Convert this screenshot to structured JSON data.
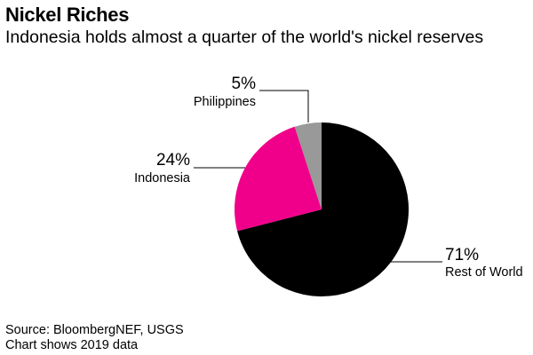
{
  "title": "Nickel Riches",
  "subtitle": "Indonesia holds almost a quarter of the world's nickel reserves",
  "chart_data": {
    "type": "pie",
    "slices": [
      {
        "label": "Rest of World",
        "value": 71,
        "value_label": "71%",
        "color": "#000000"
      },
      {
        "label": "Indonesia",
        "value": 24,
        "value_label": "24%",
        "color": "#f0008a"
      },
      {
        "label": "Philippines",
        "value": 5,
        "value_label": "5%",
        "color": "#999999"
      }
    ],
    "start_angle": "12 o'clock",
    "direction": "clockwise",
    "legend": "none (callout labels)"
  },
  "footer": {
    "source": "Source: BloombergNEF, USGS",
    "note": "Chart shows 2019 data"
  }
}
